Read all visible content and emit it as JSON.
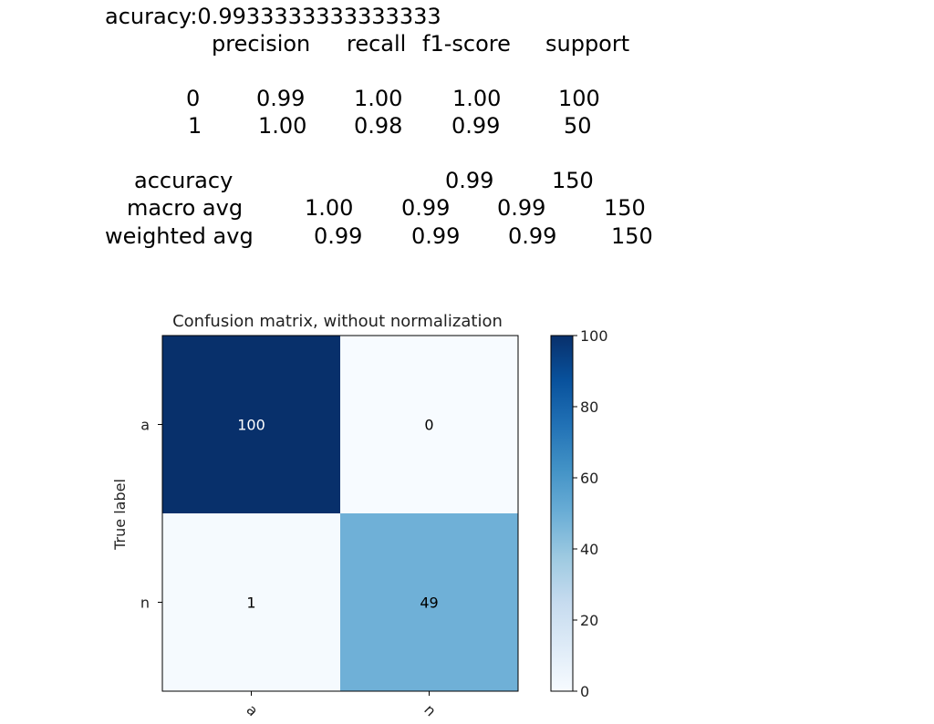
{
  "report": {
    "accuracy_line": "acuracy:0.9933333333333333",
    "header": {
      "precision": "precision",
      "recall": "recall",
      "f1": "f1-score",
      "support": "support"
    },
    "rows": [
      {
        "label": "0",
        "precision": "0.99",
        "recall": "1.00",
        "f1": "1.00",
        "support": "100"
      },
      {
        "label": "1",
        "precision": "1.00",
        "recall": "0.98",
        "f1": "0.99",
        "support": "50"
      }
    ],
    "accuracy_row": {
      "label": "accuracy",
      "f1": "0.99",
      "support": "150"
    },
    "macro_row": {
      "label": "macro avg",
      "precision": "1.00",
      "recall": "0.99",
      "f1": "0.99",
      "support": "150"
    },
    "weighted_row": {
      "label": "weighted avg",
      "precision": "0.99",
      "recall": "0.99",
      "f1": "0.99",
      "support": "150"
    }
  },
  "chart_data": {
    "type": "heatmap",
    "title": "Confusion matrix, without normalization",
    "ylabel": "True label",
    "xlabel": "",
    "x_categories": [
      "a",
      "n"
    ],
    "y_categories": [
      "a",
      "n"
    ],
    "values": [
      [
        100,
        0
      ],
      [
        1,
        49
      ]
    ],
    "colormap": "Blues",
    "colorbar": {
      "min": 0,
      "max": 100,
      "ticks": [
        0,
        20,
        40,
        60,
        80,
        100
      ]
    },
    "colors": {
      "low": "#f7fbff",
      "high": "#08306b",
      "text_dark": "#000000",
      "text_light": "#ffffff"
    }
  }
}
